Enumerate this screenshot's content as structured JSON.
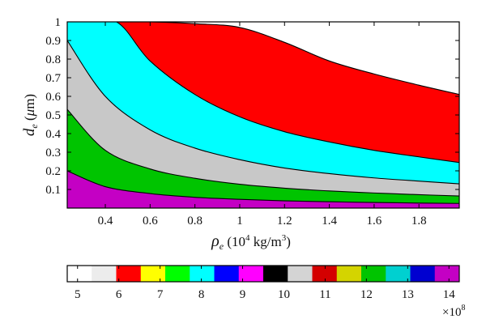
{
  "chart_data": {
    "type": "area",
    "xlabel_main": "ρ",
    "xlabel_sub": "e",
    "xlabel_rest": " (10",
    "xlabel_sup": "4",
    "xlabel_end": " kg/m",
    "xlabel_sup2": "3",
    "xlabel_close": ")",
    "ylabel_main": "d",
    "ylabel_sub": "e",
    "ylabel_rest": " (",
    "ylabel_mu": "μ",
    "ylabel_end": "m)",
    "xlim": [
      0.23,
      1.98
    ],
    "ylim": [
      0.0,
      1.0
    ],
    "x_ticks": [
      0.4,
      0.6,
      0.8,
      1,
      1.2,
      1.4,
      1.6,
      1.8
    ],
    "x_tick_labels": [
      "0.4",
      "0.6",
      "0.8",
      "1",
      "1.2",
      "1.4",
      "1.6",
      "1.8"
    ],
    "y_ticks": [
      0.1,
      0.2,
      0.3,
      0.4,
      0.5,
      0.6,
      0.7,
      0.8,
      0.9,
      1
    ],
    "y_tick_labels": [
      "0.1",
      "0.2",
      "0.3",
      "0.4",
      "0.5",
      "0.6",
      "0.7",
      "0.8",
      "0.9",
      "1"
    ],
    "boundaries": [
      {
        "x": [
          0.23,
          0.4,
          0.6,
          0.8,
          1.0,
          1.2,
          1.4,
          1.6,
          1.8,
          1.98
        ],
        "y": [
          0.2,
          0.115,
          0.078,
          0.058,
          0.047,
          0.039,
          0.034,
          0.03,
          0.027,
          0.025
        ]
      },
      {
        "x": [
          0.23,
          0.4,
          0.6,
          0.8,
          1.0,
          1.2,
          1.4,
          1.6,
          1.8,
          1.98
        ],
        "y": [
          0.53,
          0.31,
          0.21,
          0.16,
          0.128,
          0.107,
          0.092,
          0.081,
          0.072,
          0.065
        ]
      },
      {
        "x": [
          0.23,
          0.4,
          0.6,
          0.8,
          1.0,
          1.2,
          1.4,
          1.6,
          1.8,
          1.98
        ],
        "y": [
          0.9,
          0.6,
          0.42,
          0.322,
          0.26,
          0.215,
          0.185,
          0.162,
          0.145,
          0.13
        ]
      },
      {
        "x": [
          0.28,
          0.45,
          0.6,
          0.8,
          1.0,
          1.2,
          1.4,
          1.6,
          1.8,
          1.98
        ],
        "y": [
          1.0,
          1.0,
          0.79,
          0.61,
          0.49,
          0.41,
          0.355,
          0.31,
          0.275,
          0.245
        ]
      },
      {
        "x": [
          0.49,
          0.6,
          0.8,
          1.0,
          1.2,
          1.4,
          1.6,
          1.8,
          1.98
        ],
        "y": [
          1.0,
          1.0,
          0.99,
          0.97,
          0.89,
          0.79,
          0.72,
          0.66,
          0.61
        ]
      }
    ],
    "region_colors": [
      "#c400c4",
      "#00c400",
      "#c8c8c8",
      "#00ffff",
      "#ff0000",
      "#ffffff"
    ],
    "colorbar": {
      "colors": [
        "#ffffff",
        "#ececec",
        "#ff0000",
        "#ffff00",
        "#00ff00",
        "#00ffff",
        "#0000ff",
        "#ff00ff",
        "#000000",
        "#d4d4d4",
        "#d40000",
        "#d4d400",
        "#00c400",
        "#00d0d0",
        "#0000d0",
        "#c400c4"
      ],
      "ticks": [
        5,
        6,
        7,
        8,
        9,
        10,
        11,
        12,
        13,
        14
      ],
      "tick_labels": [
        "5",
        "6",
        "7",
        "8",
        "9",
        "10",
        "11",
        "12",
        "13",
        "14"
      ],
      "range": [
        4.75,
        14.25
      ],
      "multiplier_base": "×10",
      "multiplier_exp": "8"
    }
  }
}
